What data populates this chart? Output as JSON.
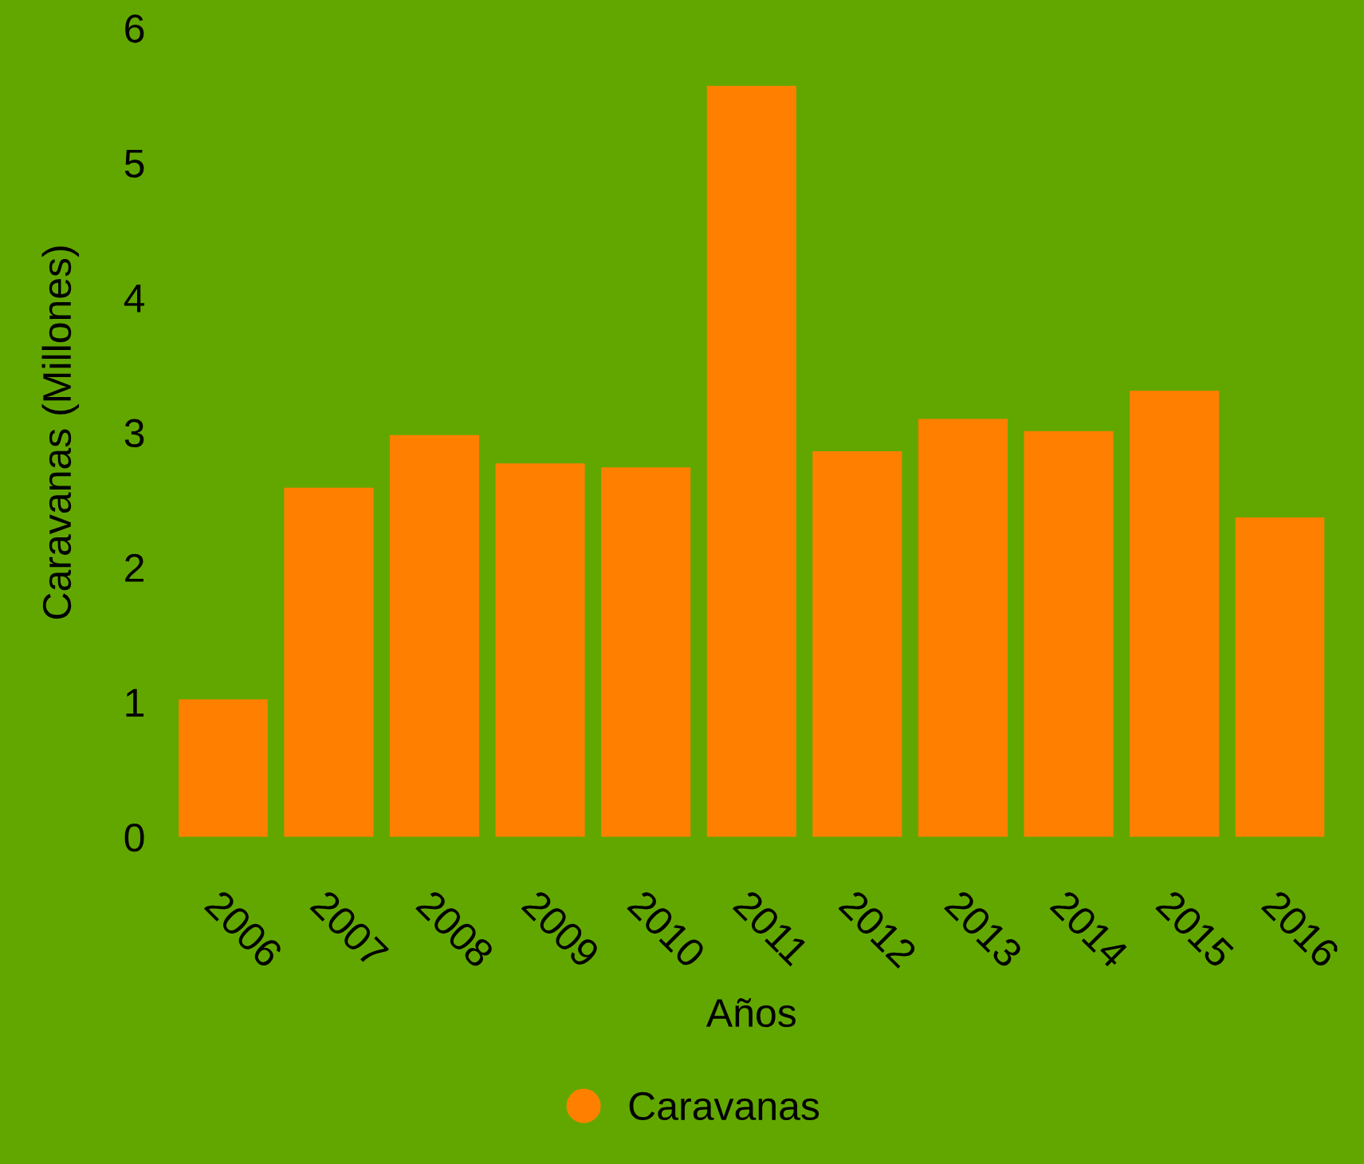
{
  "chart_data": {
    "type": "bar",
    "xlabel": "Años",
    "ylabel": "Caravanas (Millones)",
    "categories": [
      "2006",
      "2007",
      "2008",
      "2009",
      "2010",
      "2011",
      "2012",
      "2013",
      "2014",
      "2015",
      "2016"
    ],
    "series": [
      {
        "name": "Caravanas",
        "color": "#ff8000",
        "values": [
          1.02,
          2.59,
          2.98,
          2.77,
          2.74,
          5.57,
          2.86,
          3.1,
          3.01,
          3.31,
          2.37
        ]
      }
    ],
    "ylim": [
      0,
      6
    ],
    "yticks": [
      0,
      1,
      2,
      3,
      4,
      5,
      6
    ],
    "grid": false,
    "legend": "bottom"
  }
}
